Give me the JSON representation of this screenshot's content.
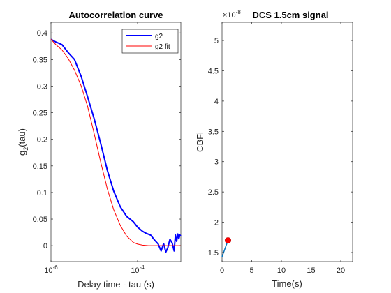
{
  "chart_data": [
    {
      "type": "line",
      "title": "Autocorrelation curve",
      "xlabel": "Delay time - tau (s)",
      "ylabel": "g2(tau)",
      "ylabel_base": "g",
      "ylabel_sub": "2",
      "ylabel_rest": "(tau)",
      "xscale": "log",
      "xlim": [
        1e-06,
        0.001
      ],
      "ylim": [
        -0.03,
        0.42
      ],
      "xticks": [
        {
          "value": 1e-06,
          "base": "10",
          "exp": "-6"
        },
        {
          "value": 0.0001,
          "base": "10",
          "exp": "-4"
        }
      ],
      "yticks": [
        {
          "value": 0,
          "label": "0"
        },
        {
          "value": 0.05,
          "label": "0.05"
        },
        {
          "value": 0.1,
          "label": "0.1"
        },
        {
          "value": 0.15,
          "label": "0.15"
        },
        {
          "value": 0.2,
          "label": "0.2"
        },
        {
          "value": 0.25,
          "label": "0.25"
        },
        {
          "value": 0.3,
          "label": "0.3"
        },
        {
          "value": 0.35,
          "label": "0.35"
        },
        {
          "value": 0.4,
          "label": "0.4"
        }
      ],
      "grid": false,
      "legend": "top-right",
      "series": [
        {
          "name": "g2",
          "color": "#0000ff",
          "x": [
            1e-06,
            1.3e-06,
            1.8e-06,
            2.5e-06,
            3.5e-06,
            5e-06,
            7e-06,
            1e-05,
            1.4e-05,
            2e-05,
            2.8e-05,
            4e-05,
            5.6e-05,
            8e-05,
            0.0001,
            0.00013,
            0.00016,
            0.0002,
            0.00025,
            0.0003,
            0.00035,
            0.0004,
            0.00045,
            0.0005,
            0.00056,
            0.00063,
            0.0007,
            0.00075,
            0.0008,
            0.00085,
            0.0009,
            0.00095,
            0.001
          ],
          "y": [
            0.388,
            0.383,
            0.378,
            0.363,
            0.35,
            0.318,
            0.28,
            0.238,
            0.193,
            0.142,
            0.103,
            0.073,
            0.055,
            0.045,
            0.035,
            0.027,
            0.023,
            0.02,
            0.01,
            0.003,
            -0.01,
            0.004,
            -0.012,
            -0.004,
            0.012,
            0.005,
            -0.01,
            0.02,
            0.008,
            0.022,
            0.013,
            0.02,
            0.018
          ]
        },
        {
          "name": "g2 fit",
          "color": "#ff0000",
          "x": [
            1e-06,
            1.3e-06,
            1.8e-06,
            2.5e-06,
            3.5e-06,
            5e-06,
            7e-06,
            1e-05,
            1.4e-05,
            2e-05,
            2.8e-05,
            4e-05,
            5.6e-05,
            8e-05,
            0.0001,
            0.00013,
            0.00018,
            0.00025,
            0.00035,
            0.0005,
            0.0007,
            0.001
          ],
          "y": [
            0.388,
            0.378,
            0.368,
            0.352,
            0.33,
            0.3,
            0.262,
            0.21,
            0.158,
            0.107,
            0.068,
            0.038,
            0.018,
            0.006,
            0.003,
            0.001,
            0.0,
            0.0,
            0.0,
            0.0,
            0.0,
            0.0
          ]
        }
      ]
    },
    {
      "type": "line",
      "title": "DCS 1.5cm signal",
      "xlabel": "Time(s)",
      "ylabel": "CBFi",
      "y_exponent_base": "×10",
      "y_exponent": "-8",
      "xlim": [
        0,
        22
      ],
      "ylim": [
        1.35,
        5.3
      ],
      "xticks": [
        {
          "value": 0,
          "label": "0"
        },
        {
          "value": 5,
          "label": "5"
        },
        {
          "value": 10,
          "label": "10"
        },
        {
          "value": 15,
          "label": "15"
        },
        {
          "value": 20,
          "label": "20"
        }
      ],
      "yticks": [
        {
          "value": 1.5,
          "label": "1.5"
        },
        {
          "value": 2,
          "label": "2"
        },
        {
          "value": 2.5,
          "label": "2.5"
        },
        {
          "value": 3,
          "label": "3"
        },
        {
          "value": 3.5,
          "label": "3.5"
        },
        {
          "value": 4,
          "label": "4"
        },
        {
          "value": 4.5,
          "label": "4.5"
        },
        {
          "value": 5,
          "label": "5"
        }
      ],
      "grid": false,
      "series": [
        {
          "color": "#0072bd",
          "x": [
            0,
            1
          ],
          "y": [
            1.43,
            1.7
          ]
        }
      ],
      "marker": {
        "x": 1,
        "y": 1.7,
        "color": "#ff0000"
      }
    }
  ]
}
